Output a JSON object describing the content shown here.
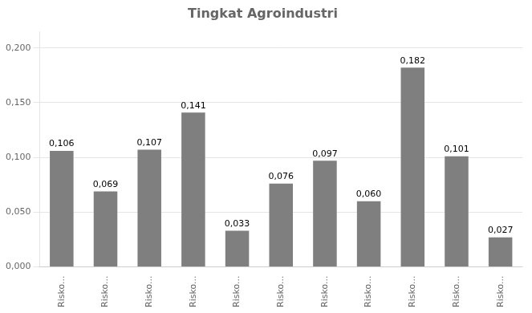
{
  "chart_data": {
    "type": "bar",
    "title": "Tingkat Agroindustri",
    "categories": [
      "Risko...",
      "Risko...",
      "Risko...",
      "Risko...",
      "Risko...",
      "Risko...",
      "Risko...",
      "Risko...",
      "Risko...",
      "Risko...",
      "Risko..."
    ],
    "values": [
      0.106,
      0.069,
      0.107,
      0.141,
      0.033,
      0.076,
      0.097,
      0.06,
      0.182,
      0.101,
      0.027
    ],
    "value_labels": [
      "0,106",
      "0,069",
      "0,107",
      "0,141",
      "0,033",
      "0,076",
      "0,097",
      "0,060",
      "0,182",
      "0,101",
      "0,027"
    ],
    "data_labels": true,
    "color": "#7f7f7f",
    "ylim": [
      0,
      0.215
    ],
    "yticks": [
      {
        "value": 0.0,
        "label": "0,000"
      },
      {
        "value": 0.05,
        "label": "0,050"
      },
      {
        "value": 0.1,
        "label": "0,100"
      },
      {
        "value": 0.15,
        "label": "0,150"
      },
      {
        "value": 0.2,
        "label": "0,200"
      }
    ],
    "grid": true
  }
}
